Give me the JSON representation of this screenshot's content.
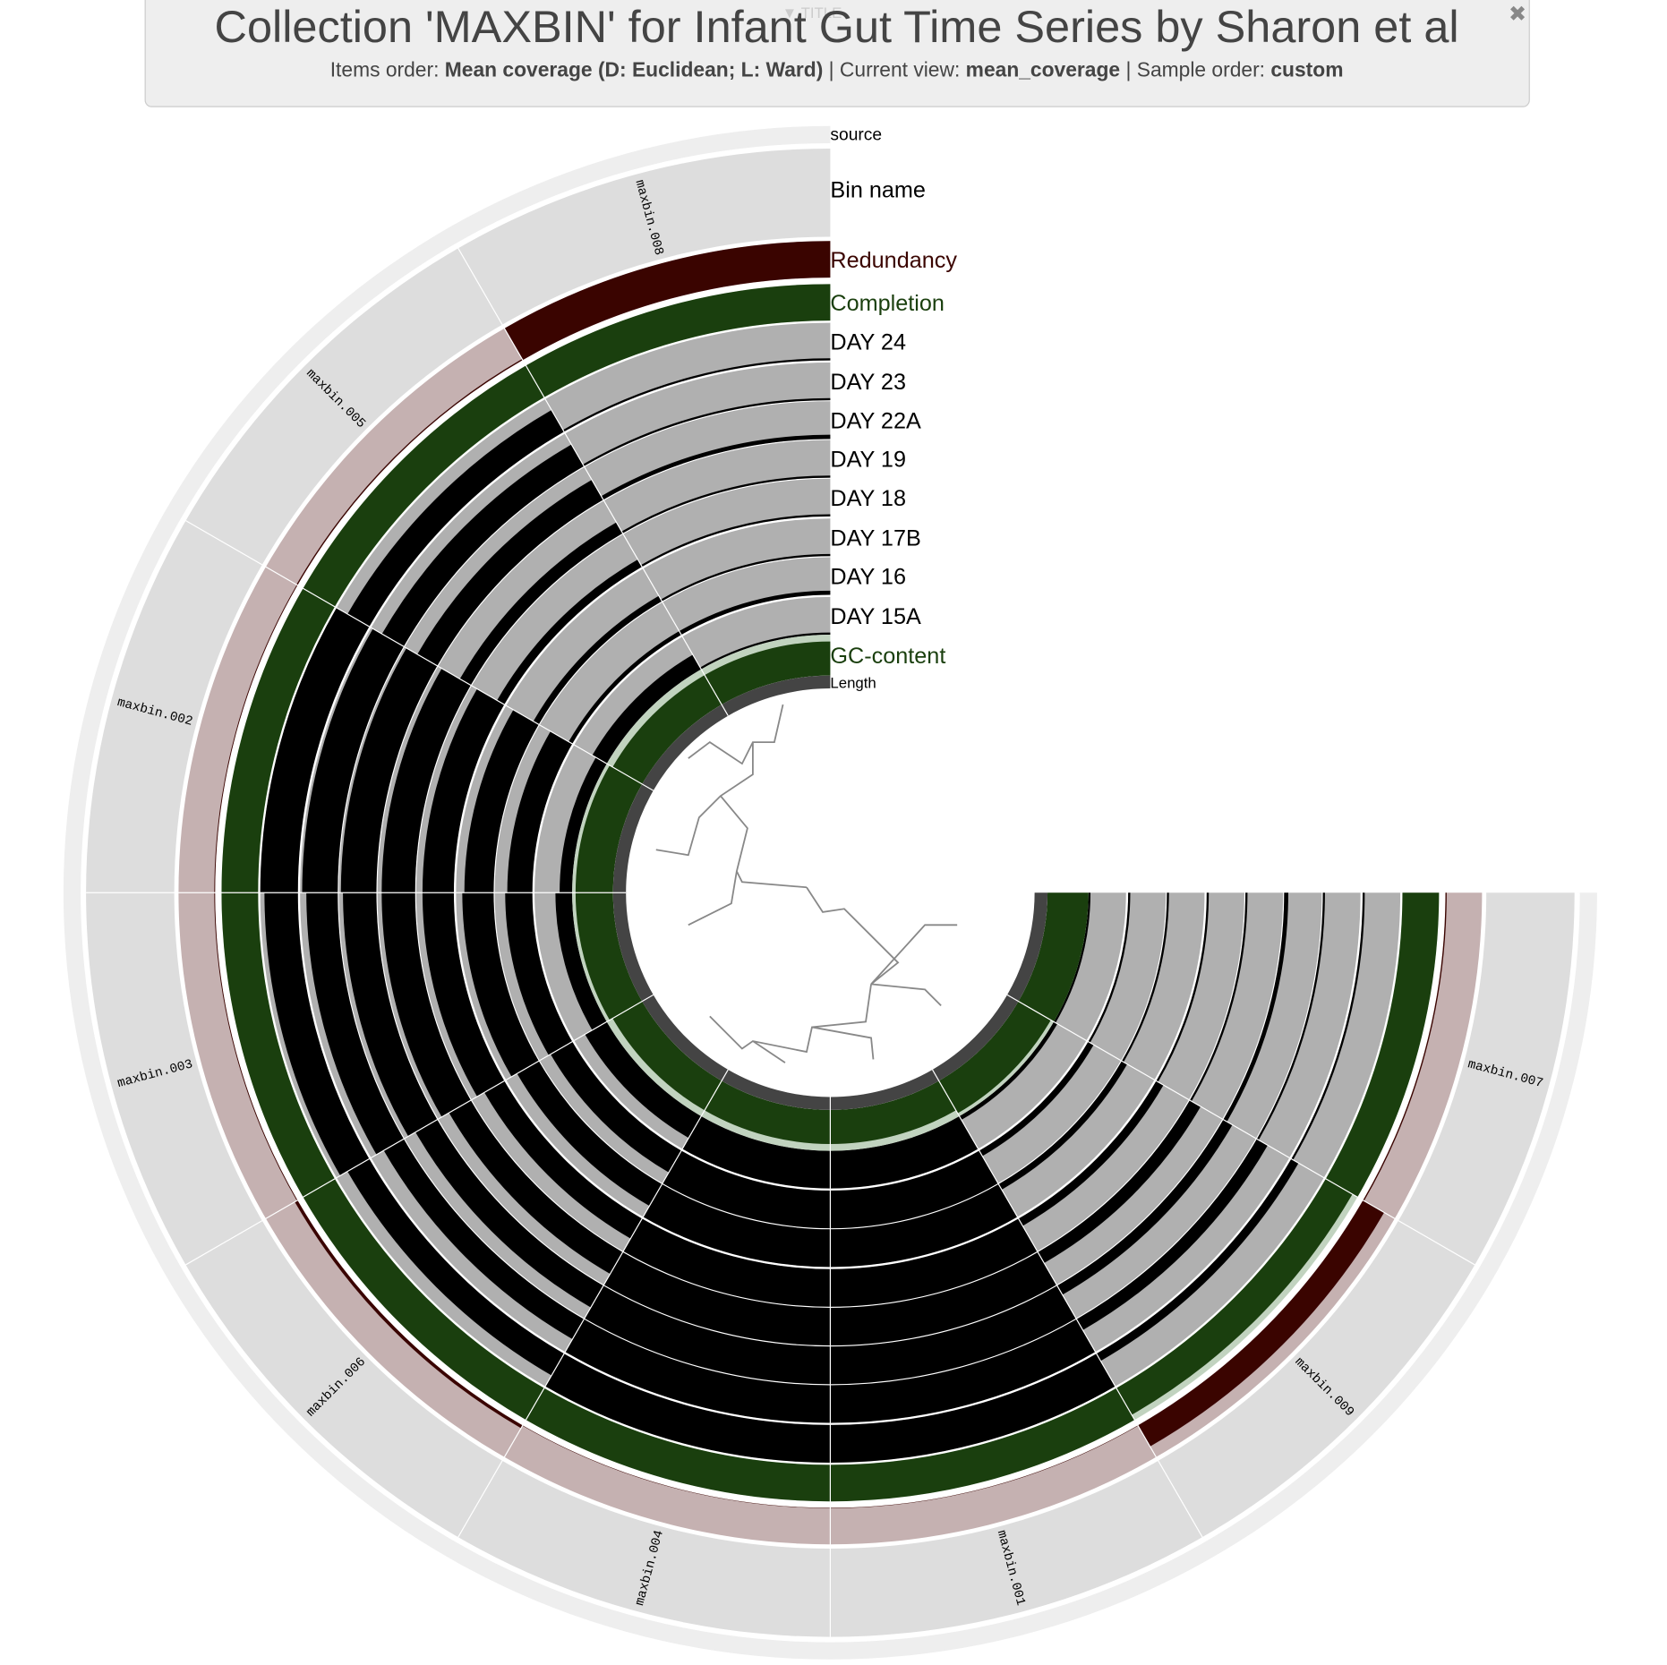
{
  "header": {
    "title": "Collection 'MAXBIN' for Infant Gut Time Series by Sharon et al",
    "items_order_label": "Items order:",
    "items_order": "Mean coverage (D: Euclidean; L: Ward)",
    "current_view_label": "| Current view:",
    "current_view": "mean_coverage",
    "sample_order_label": "| Sample order:",
    "sample_order": "custom",
    "tab": "▼ TITLE",
    "close": "✖"
  },
  "chart_data": {
    "type": "radial",
    "bins": [
      "maxbin.008",
      "maxbin.005",
      "maxbin.002",
      "maxbin.003",
      "maxbin.006",
      "maxbin.004",
      "maxbin.001",
      "maxbin.009",
      "maxbin.007"
    ],
    "source_layer": "source",
    "bin_name_layer": "Bin name",
    "layers": [
      {
        "name": "Redundancy",
        "color": "#3a0400",
        "background": "#c5b1b1",
        "values": [
          90,
          3,
          2,
          2,
          8,
          1,
          1,
          60,
          3
        ]
      },
      {
        "name": "Completion",
        "color": "#1a3f0e",
        "background": "#c1d3bf",
        "values": [
          95,
          95,
          95,
          95,
          95,
          95,
          95,
          80,
          95
        ]
      },
      {
        "name": "DAY 24",
        "color": "#000000",
        "background": "#b0b0b0",
        "values": [
          5,
          60,
          90,
          80,
          60,
          90,
          90,
          20,
          5
        ]
      },
      {
        "name": "DAY 23",
        "color": "#000000",
        "background": "#b0b0b0",
        "values": [
          5,
          60,
          85,
          75,
          55,
          90,
          90,
          30,
          5
        ]
      },
      {
        "name": "DAY 22A",
        "color": "#000000",
        "background": "#b0b0b0",
        "values": [
          10,
          55,
          85,
          80,
          60,
          90,
          90,
          25,
          10
        ]
      },
      {
        "name": "DAY 19",
        "color": "#000000",
        "background": "#b0b0b0",
        "values": [
          5,
          30,
          80,
          80,
          60,
          90,
          90,
          30,
          5
        ]
      },
      {
        "name": "DAY 18",
        "color": "#000000",
        "background": "#b0b0b0",
        "values": [
          5,
          20,
          75,
          75,
          55,
          90,
          90,
          20,
          5
        ]
      },
      {
        "name": "DAY 17B",
        "color": "#000000",
        "background": "#b0b0b0",
        "values": [
          5,
          15,
          70,
          75,
          60,
          90,
          90,
          15,
          5
        ]
      },
      {
        "name": "DAY 16",
        "color": "#000000",
        "background": "#b0b0b0",
        "values": [
          10,
          10,
          60,
          65,
          60,
          90,
          90,
          15,
          5
        ]
      },
      {
        "name": "DAY 15A",
        "color": "#000000",
        "background": "#b0b0b0",
        "values": [
          5,
          40,
          30,
          40,
          60,
          90,
          90,
          10,
          5
        ]
      },
      {
        "name": "GC-content",
        "color": "#1a3f0e",
        "background": "#c1d3bf",
        "values": [
          50,
          50,
          55,
          55,
          50,
          50,
          50,
          55,
          60
        ]
      },
      {
        "name": "Length",
        "color": "#444444",
        "background": "#dddddd",
        "values": [
          100,
          100,
          100,
          100,
          100,
          100,
          100,
          100,
          100
        ]
      }
    ]
  }
}
